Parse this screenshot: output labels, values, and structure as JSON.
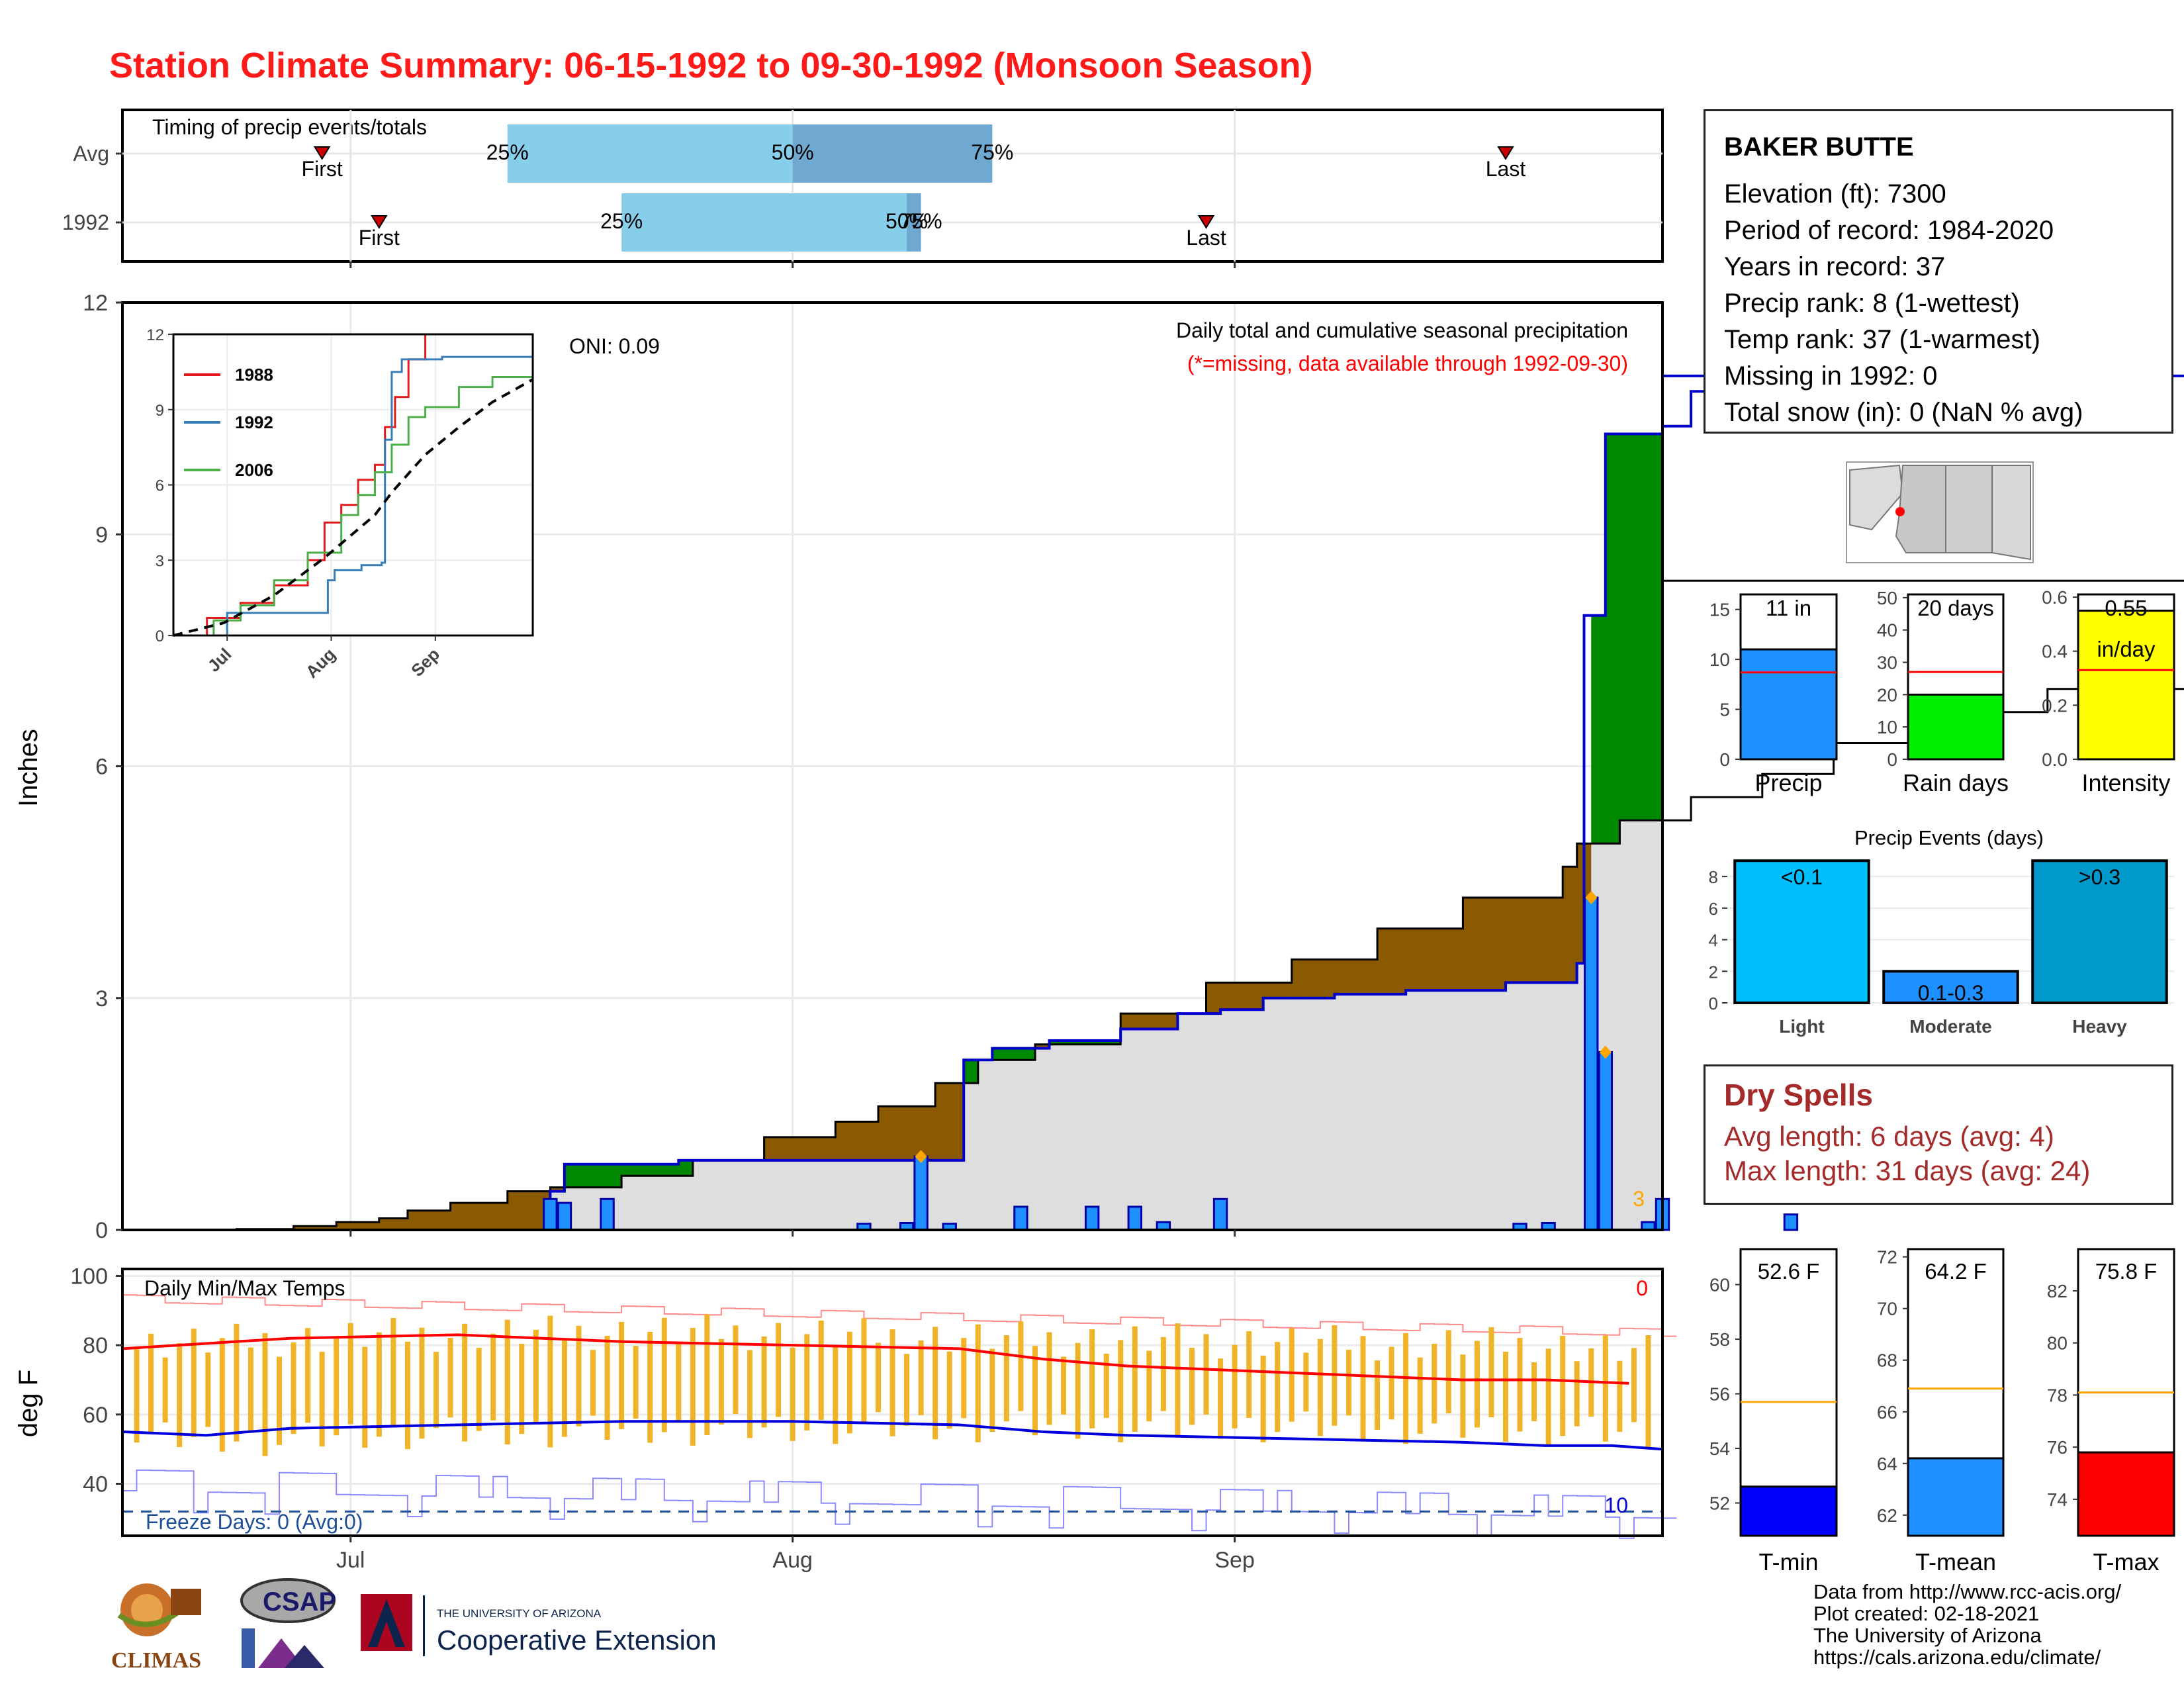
{
  "title": "Station Climate Summary: 06-15-1992 to 09-30-1992 (Monsoon Season)",
  "colors": {
    "title": "#ff1a1a",
    "avg_cumulative_fill": "#dedede",
    "below_avg_fill": "#8b5a00",
    "above_avg_fill": "#008800",
    "daily_bar": "#1e90ff",
    "cumulative_line": "#0000cc",
    "temp_range_bar": "#f0b429",
    "tmax_avg_line": "#ff0000",
    "tmin_avg_line": "#0000dd",
    "freeze_line": "#1f4e99",
    "dry_spell_text": "#a52a2a"
  },
  "timing_panel": {
    "title": "Timing of precip events/totals",
    "row_labels": [
      "Avg",
      "1992"
    ],
    "first_label": "First",
    "last_label": "Last",
    "pct_labels": [
      "25%",
      "50%",
      "75%"
    ],
    "rows": [
      {
        "name": "Avg",
        "first": "1992-06-29",
        "p25": "1992-07-12",
        "p50": "1992-08-01",
        "p75": "1992-08-15",
        "last": "1992-09-20"
      },
      {
        "name": "1992",
        "first": "1992-07-03",
        "p25": "1992-07-20",
        "p50": "1992-08-09",
        "p75": "1992-08-10",
        "last": "1992-08-30"
      }
    ]
  },
  "precip_panel": {
    "annotation_title": "Daily total and cumulative seasonal precipitation",
    "annotation_missing": "(*=missing, data available through 1992-09-30)",
    "oni": "ONI: 0.09",
    "ylabel": "Inches",
    "yticks": [
      "0",
      "3",
      "6",
      "9",
      "12"
    ],
    "ylim": [
      0,
      12
    ],
    "corner_count": "3"
  },
  "inset": {
    "yticks": [
      "0",
      "3",
      "6",
      "9",
      "12"
    ],
    "xticks": [
      "Jul",
      "Aug",
      "Sep"
    ],
    "legend": [
      "1988",
      "1992",
      "2006"
    ],
    "series_colors": [
      "#e41a1c",
      "#377eb8",
      "#4daf4a"
    ]
  },
  "temp_panel": {
    "title": "Daily Min/Max Temps",
    "ylabel": "deg F",
    "yticks": [
      "40",
      "60",
      "80",
      "100"
    ],
    "ylim": [
      25,
      102
    ],
    "freeze_text": "Freeze Days: 0 (Avg:0)",
    "hot_count": "0",
    "cold_count": "10",
    "freeze_line_value": 32
  },
  "x_axis": {
    "ticks": [
      "Jul",
      "Aug",
      "Sep"
    ],
    "start": "1992-06-15",
    "end": "1992-09-30"
  },
  "station": {
    "name": "BAKER BUTTE",
    "lines": [
      "Elevation (ft): 7300",
      "Period of record: 1984-2020",
      "Years in record: 37",
      "Precip rank: 8 (1-wettest)",
      "Temp rank: 37 (1-warmest)",
      "Missing in 1992: 0",
      "Total snow (in): 0 (NaN % avg)"
    ]
  },
  "summary_bars": [
    {
      "label": "Precip",
      "value_label": "11 in",
      "value": 11.0,
      "avg": 8.7,
      "yticks": [
        "0",
        "5",
        "10",
        "15"
      ],
      "ymax": 16.5,
      "color": "#1e90ff"
    },
    {
      "label": "Rain days",
      "value_label": "20 days",
      "value": 20,
      "avg": 27,
      "yticks": [
        "0",
        "10",
        "20",
        "30",
        "40",
        "50"
      ],
      "ymax": 51,
      "color": "#00ee00"
    },
    {
      "label": "Intensity",
      "value_label": "0.55",
      "value_label2": "in/day",
      "value": 0.55,
      "avg": 0.33,
      "yticks": [
        "0.0",
        "0.2",
        "0.4",
        "0.6"
      ],
      "ymax": 0.61,
      "color": "#ffff00"
    }
  ],
  "precip_events": {
    "title": "Precip Events (days)",
    "yticks": [
      "0",
      "2",
      "4",
      "6",
      "8"
    ],
    "ymax": 8.8,
    "categories": [
      "Light",
      "Moderate",
      "Heavy"
    ],
    "bar_labels": [
      "<0.1",
      "0.1-0.3",
      ">0.3"
    ],
    "values": [
      9,
      2,
      9
    ],
    "colors": [
      "#00bfff",
      "#1e90ff",
      "#0099cc"
    ]
  },
  "dry_spells": {
    "title": "Dry Spells",
    "avg_length": "Avg length: 6 days (avg: 4)",
    "max_length": "Max length: 31 days (avg: 24)"
  },
  "temp_summary": [
    {
      "label": "T-min",
      "value_label": "52.6 F",
      "value": 52.6,
      "avg": 55.7,
      "ymin": 50.8,
      "ymax": 61.3,
      "yticks": [
        "52",
        "54",
        "56",
        "58",
        "60"
      ],
      "color": "#0000ff"
    },
    {
      "label": "T-mean",
      "value_label": "64.2 F",
      "value": 64.2,
      "avg": 66.9,
      "ymin": 61.2,
      "ymax": 72.3,
      "yticks": [
        "62",
        "64",
        "66",
        "68",
        "70",
        "72"
      ],
      "color": "#1e90ff"
    },
    {
      "label": "T-max",
      "value_label": "75.8 F",
      "value": 75.8,
      "avg": 78.1,
      "ymin": 72.6,
      "ymax": 83.6,
      "yticks": [
        "74",
        "76",
        "78",
        "80",
        "82"
      ],
      "color": "#ff0000"
    }
  ],
  "credits": [
    "Data from http://www.rcc-acis.org/",
    "Plot created: 02-18-2021",
    "The University of Arizona",
    "https://cals.arizona.edu/climate/"
  ],
  "logos": {
    "climas": "CLIMAS",
    "csap": "CSAP",
    "ua_small": "THE UNIVERSITY OF ARIZONA",
    "ua_large": "Cooperative Extension"
  },
  "chart_data": [
    {
      "type": "area",
      "name": "precip",
      "x_start": "1992-06-15",
      "xlabel": "",
      "ylabel": "Inches",
      "ylim": [
        0,
        12
      ],
      "avg_cumulative": [
        [
          0,
          0
        ],
        [
          8,
          0.01
        ],
        [
          12,
          0.05
        ],
        [
          15,
          0.1
        ],
        [
          18,
          0.15
        ],
        [
          20,
          0.25
        ],
        [
          23,
          0.35
        ],
        [
          27,
          0.5
        ],
        [
          30,
          0.55
        ],
        [
          35,
          0.7
        ],
        [
          40,
          0.9
        ],
        [
          45,
          1.2
        ],
        [
          50,
          1.4
        ],
        [
          53,
          1.6
        ],
        [
          57,
          1.9
        ],
        [
          60,
          2.2
        ],
        [
          64,
          2.4
        ],
        [
          70,
          2.8
        ],
        [
          76,
          3.2
        ],
        [
          82,
          3.5
        ],
        [
          88,
          3.9
        ],
        [
          94,
          4.3
        ],
        [
          101,
          4.7
        ],
        [
          102,
          5.0
        ],
        [
          105,
          5.3
        ],
        [
          110,
          5.6
        ],
        [
          115,
          5.9
        ],
        [
          120,
          6.3
        ],
        [
          128,
          6.7
        ],
        [
          135,
          7.0
        ],
        [
          145,
          7.3
        ],
        [
          155,
          7.6
        ],
        [
          170,
          7.8
        ],
        [
          180,
          8.0
        ],
        [
          192,
          8.3
        ],
        [
          210,
          8.4
        ]
      ],
      "cum_1992": [
        [
          0,
          0
        ],
        [
          30,
          0.5
        ],
        [
          31,
          0.85
        ],
        [
          34,
          0.85
        ],
        [
          39,
          0.9
        ],
        [
          43,
          0.9
        ],
        [
          58,
          0.9
        ],
        [
          59,
          2.2
        ],
        [
          61,
          2.35
        ],
        [
          65,
          2.45
        ],
        [
          70,
          2.6
        ],
        [
          74,
          2.8
        ],
        [
          77,
          2.85
        ],
        [
          80,
          3.0
        ],
        [
          83,
          3.0
        ],
        [
          85,
          3.05
        ],
        [
          90,
          3.1
        ],
        [
          97,
          3.2
        ],
        [
          100,
          3.2
        ],
        [
          102,
          3.45
        ],
        [
          102.5,
          7.95
        ],
        [
          104,
          10.3
        ],
        [
          108,
          10.4
        ],
        [
          110,
          10.85
        ],
        [
          116,
          10.85
        ],
        [
          118,
          11.05
        ],
        [
          210,
          11.05
        ]
      ],
      "daily_1992": [
        [
          30,
          0.4
        ],
        [
          31,
          0.35
        ],
        [
          34,
          0.4
        ],
        [
          52,
          0.08
        ],
        [
          55,
          0.09
        ],
        [
          56,
          0.95
        ],
        [
          58,
          0.08
        ],
        [
          63,
          0.3
        ],
        [
          68,
          0.3
        ],
        [
          71,
          0.3
        ],
        [
          73,
          0.1
        ],
        [
          77,
          0.4
        ],
        [
          98,
          0.08
        ],
        [
          100,
          0.09
        ],
        [
          103,
          4.3
        ],
        [
          104,
          2.3
        ],
        [
          107,
          0.1
        ],
        [
          108,
          0.4
        ],
        [
          117,
          0.2
        ]
      ]
    },
    {
      "type": "line",
      "name": "inset",
      "xlim": [
        0,
        107
      ],
      "ylim": [
        0,
        12
      ],
      "series": [
        {
          "name": "1988",
          "values": [
            [
              0,
              0
            ],
            [
              10,
              0.7
            ],
            [
              20,
              1.3
            ],
            [
              30,
              2.0
            ],
            [
              40,
              3.0
            ],
            [
              45,
              4.5
            ],
            [
              50,
              5.2
            ],
            [
              55,
              6.2
            ],
            [
              60,
              6.8
            ],
            [
              63,
              8.3
            ],
            [
              66,
              9.5
            ],
            [
              70,
              11.0
            ],
            [
              75,
              12.5
            ],
            [
              107,
              12.5
            ]
          ]
        },
        {
          "name": "1992",
          "values": [
            [
              0,
              0
            ],
            [
              16,
              0.9
            ],
            [
              45,
              0.9
            ],
            [
              46,
              2.2
            ],
            [
              48,
              2.6
            ],
            [
              56,
              2.8
            ],
            [
              62,
              2.9
            ],
            [
              63,
              7.8
            ],
            [
              65,
              10.5
            ],
            [
              68,
              11.0
            ],
            [
              80,
              11.1
            ],
            [
              107,
              11.1
            ]
          ]
        },
        {
          "name": "2006",
          "values": [
            [
              0,
              0
            ],
            [
              12,
              0.6
            ],
            [
              20,
              1.2
            ],
            [
              30,
              2.2
            ],
            [
              40,
              3.3
            ],
            [
              50,
              4.8
            ],
            [
              55,
              5.6
            ],
            [
              60,
              6.5
            ],
            [
              65,
              7.6
            ],
            [
              70,
              8.7
            ],
            [
              75,
              9.1
            ],
            [
              85,
              9.9
            ],
            [
              95,
              10.3
            ],
            [
              107,
              10.5
            ]
          ]
        },
        {
          "name": "avg",
          "values": [
            [
              0,
              0
            ],
            [
              15,
              0.5
            ],
            [
              30,
              1.6
            ],
            [
              45,
              3.1
            ],
            [
              60,
              4.8
            ],
            [
              65,
              5.7
            ],
            [
              75,
              7.2
            ],
            [
              85,
              8.3
            ],
            [
              95,
              9.3
            ],
            [
              107,
              10.2
            ]
          ]
        }
      ]
    },
    {
      "type": "bar",
      "name": "temps",
      "ylabel": "deg F",
      "ylim": [
        25,
        102
      ],
      "avg_tmax": [
        [
          0,
          79
        ],
        [
          20,
          82
        ],
        [
          40,
          83
        ],
        [
          60,
          81
        ],
        [
          80,
          80
        ],
        [
          100,
          79
        ],
        [
          110,
          76
        ],
        [
          120,
          74
        ],
        [
          130,
          73
        ],
        [
          140,
          72
        ],
        [
          150,
          71
        ],
        [
          160,
          70
        ],
        [
          170,
          70
        ],
        [
          180,
          69
        ]
      ],
      "avg_tmin": [
        [
          0,
          55
        ],
        [
          10,
          54
        ],
        [
          20,
          56
        ],
        [
          40,
          57
        ],
        [
          60,
          58
        ],
        [
          80,
          58
        ],
        [
          100,
          57
        ],
        [
          110,
          55
        ],
        [
          120,
          54
        ],
        [
          140,
          53
        ],
        [
          160,
          52
        ],
        [
          170,
          51
        ],
        [
          178,
          51
        ],
        [
          184,
          50
        ]
      ]
    }
  ]
}
